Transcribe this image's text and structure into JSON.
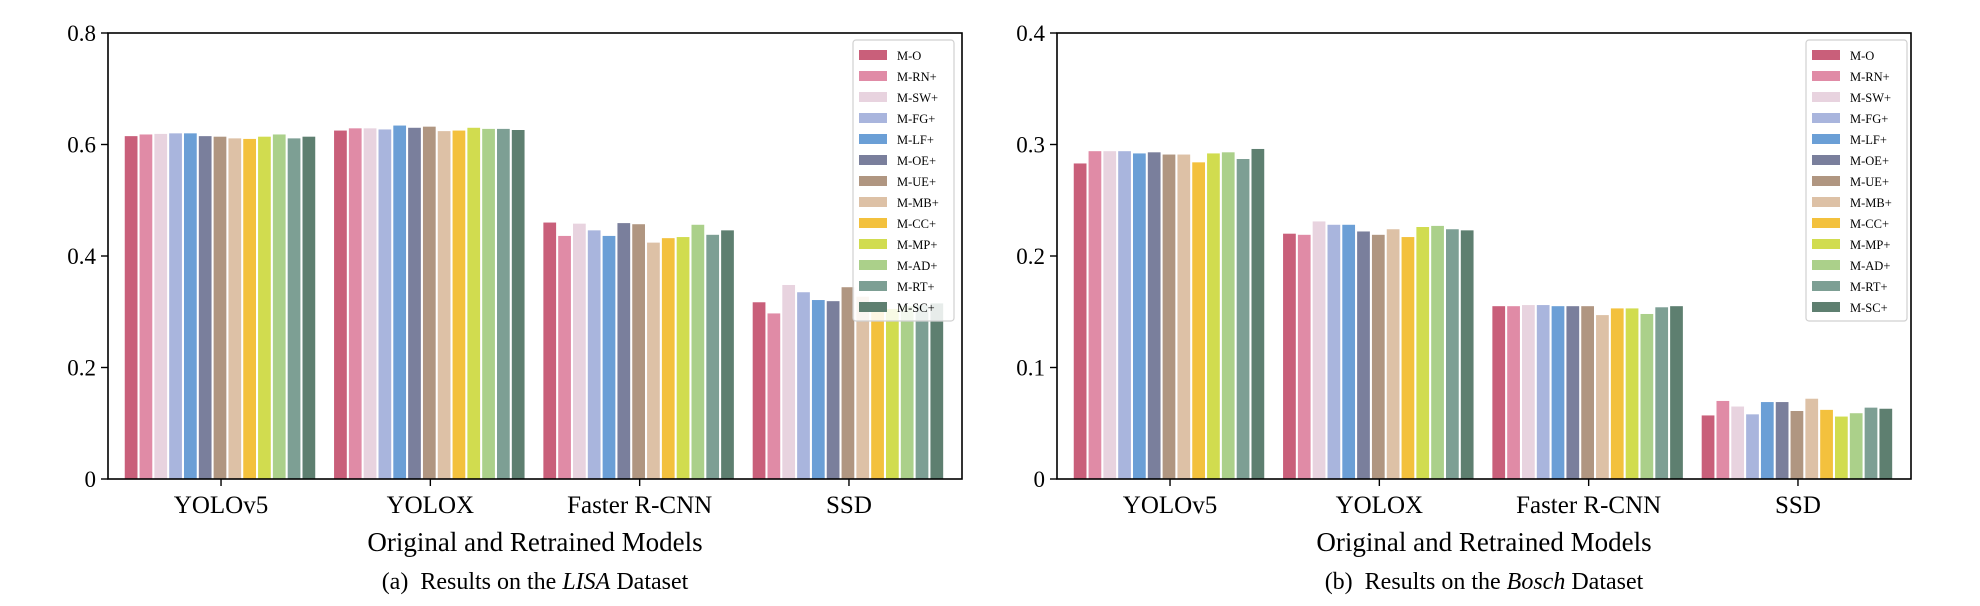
{
  "chart_data": [
    {
      "type": "bar",
      "caption": {
        "prefix": "(a)",
        "text_before": "Results on the ",
        "dataset": "LISA",
        "text_after": " Dataset"
      },
      "xlabel": "Original and Retrained Models",
      "ylabel": "",
      "ylim": [
        0,
        0.8
      ],
      "yticks": [
        0,
        0.2,
        0.4,
        0.6,
        0.8
      ],
      "ytick_labels": [
        "0",
        "0.2",
        "0.4",
        "0.6",
        "0.8"
      ],
      "legend_position": "top-right",
      "categories": [
        "YOLOv5",
        "YOLOX",
        "Faster R-CNN",
        "SSD"
      ],
      "series": [
        {
          "name": "M-O",
          "color": "#c95f7a",
          "values": [
            0.615,
            0.625,
            0.46,
            0.317
          ]
        },
        {
          "name": "M-RN+",
          "color": "#e08ba6",
          "values": [
            0.618,
            0.629,
            0.436,
            0.297
          ]
        },
        {
          "name": "M-SW+",
          "color": "#e8d3df",
          "values": [
            0.619,
            0.629,
            0.458,
            0.348
          ]
        },
        {
          "name": "M-FG+",
          "color": "#a9b5dd",
          "values": [
            0.62,
            0.627,
            0.446,
            0.335
          ]
        },
        {
          "name": "M-LF+",
          "color": "#6b9fd6",
          "values": [
            0.62,
            0.634,
            0.436,
            0.321
          ]
        },
        {
          "name": "M-OE+",
          "color": "#7a7f9c",
          "values": [
            0.615,
            0.63,
            0.459,
            0.319
          ]
        },
        {
          "name": "M-UE+",
          "color": "#b09681",
          "values": [
            0.614,
            0.632,
            0.457,
            0.344
          ]
        },
        {
          "name": "M-MB+",
          "color": "#ddc1a6",
          "values": [
            0.611,
            0.624,
            0.424,
            0.327
          ]
        },
        {
          "name": "M-CC+",
          "color": "#f3c13d",
          "values": [
            0.61,
            0.625,
            0.432,
            0.31
          ]
        },
        {
          "name": "M-MP+",
          "color": "#d1dc4f",
          "values": [
            0.614,
            0.63,
            0.434,
            0.305
          ]
        },
        {
          "name": "M-AD+",
          "color": "#abd08a",
          "values": [
            0.618,
            0.628,
            0.456,
            0.31
          ]
        },
        {
          "name": "M-RT+",
          "color": "#7d9f94",
          "values": [
            0.611,
            0.628,
            0.438,
            0.312
          ]
        },
        {
          "name": "M-SC+",
          "color": "#5e7f70",
          "values": [
            0.614,
            0.626,
            0.446,
            0.315
          ]
        }
      ]
    },
    {
      "type": "bar",
      "caption": {
        "prefix": "(b)",
        "text_before": "Results on the ",
        "dataset": "Bosch",
        "text_after": " Dataset"
      },
      "xlabel": "Original and Retrained Models",
      "ylabel": "",
      "ylim": [
        0,
        0.4
      ],
      "yticks": [
        0,
        0.1,
        0.2,
        0.3,
        0.4
      ],
      "ytick_labels": [
        "0",
        "0.1",
        "0.2",
        "0.3",
        "0.4"
      ],
      "legend_position": "top-right",
      "categories": [
        "YOLOv5",
        "YOLOX",
        "Faster R-CNN",
        "SSD"
      ],
      "series": [
        {
          "name": "M-O",
          "color": "#c95f7a",
          "values": [
            0.283,
            0.22,
            0.155,
            0.057
          ]
        },
        {
          "name": "M-RN+",
          "color": "#e08ba6",
          "values": [
            0.294,
            0.219,
            0.155,
            0.07
          ]
        },
        {
          "name": "M-SW+",
          "color": "#e8d3df",
          "values": [
            0.294,
            0.231,
            0.156,
            0.065
          ]
        },
        {
          "name": "M-FG+",
          "color": "#a9b5dd",
          "values": [
            0.294,
            0.228,
            0.156,
            0.058
          ]
        },
        {
          "name": "M-LF+",
          "color": "#6b9fd6",
          "values": [
            0.292,
            0.228,
            0.155,
            0.069
          ]
        },
        {
          "name": "M-OE+",
          "color": "#7a7f9c",
          "values": [
            0.293,
            0.222,
            0.155,
            0.069
          ]
        },
        {
          "name": "M-UE+",
          "color": "#b09681",
          "values": [
            0.291,
            0.219,
            0.155,
            0.061
          ]
        },
        {
          "name": "M-MB+",
          "color": "#ddc1a6",
          "values": [
            0.291,
            0.224,
            0.147,
            0.072
          ]
        },
        {
          "name": "M-CC+",
          "color": "#f3c13d",
          "values": [
            0.284,
            0.217,
            0.153,
            0.062
          ]
        },
        {
          "name": "M-MP+",
          "color": "#d1dc4f",
          "values": [
            0.292,
            0.226,
            0.153,
            0.056
          ]
        },
        {
          "name": "M-AD+",
          "color": "#abd08a",
          "values": [
            0.293,
            0.227,
            0.148,
            0.059
          ]
        },
        {
          "name": "M-RT+",
          "color": "#7d9f94",
          "values": [
            0.287,
            0.224,
            0.154,
            0.064
          ]
        },
        {
          "name": "M-SC+",
          "color": "#5e7f70",
          "values": [
            0.296,
            0.223,
            0.155,
            0.063
          ]
        }
      ]
    }
  ]
}
